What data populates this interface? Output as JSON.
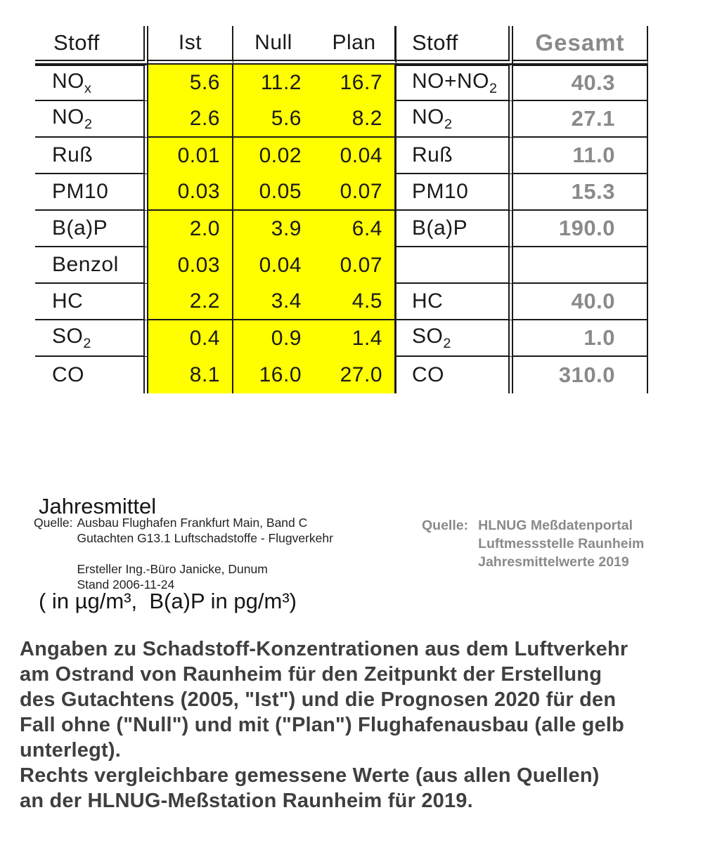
{
  "tables": {
    "left": {
      "highlight_color": "#ffff00",
      "headers": {
        "stoff": "Stoff",
        "ist": "Ist",
        "null": "Null",
        "plan": "Plan"
      },
      "rows": [
        {
          "label": "NO",
          "sub": "x",
          "ist": "5.6",
          "null": "11.2",
          "plan": "16.7",
          "group_end": false
        },
        {
          "label": "NO",
          "sub": "2",
          "ist": "2.6",
          "null": "5.6",
          "plan": "8.2",
          "group_end": true
        },
        {
          "label": "Ruß",
          "sub": "",
          "ist": "0.01",
          "null": "0.02",
          "plan": "0.04",
          "group_end": false
        },
        {
          "label": "PM10",
          "sub": "",
          "ist": "0.03",
          "null": "0.05",
          "plan": "0.07",
          "group_end": true
        },
        {
          "label": "B(a)P",
          "sub": "",
          "ist": "2.0",
          "null": "3.9",
          "plan": "6.4",
          "group_end": false
        },
        {
          "label": "Benzol",
          "sub": "",
          "ist": "0.03",
          "null": "0.04",
          "plan": "0.07",
          "group_end": false
        },
        {
          "label": "HC",
          "sub": "",
          "ist": "2.2",
          "null": "3.4",
          "plan": "4.5",
          "group_end": true
        },
        {
          "label": "SO",
          "sub": "2",
          "ist": "0.4",
          "null": "0.9",
          "plan": "1.4",
          "group_end": false
        },
        {
          "label": "CO",
          "sub": "",
          "ist": "8.1",
          "null": "16.0",
          "plan": "27.0",
          "group_end": false
        }
      ]
    },
    "right": {
      "value_color": "#8a8a8a",
      "headers": {
        "stoff": "Stoff",
        "gesamt": "Gesamt"
      },
      "rows": [
        {
          "label": "NO+NO",
          "sub": "2",
          "gesamt": "40.3"
        },
        {
          "label": "NO",
          "sub": "2",
          "gesamt": "27.1"
        },
        {
          "label": "Ruß",
          "sub": "",
          "gesamt": "11.0"
        },
        {
          "label": "PM10",
          "sub": "",
          "gesamt": "15.3"
        },
        {
          "label": "B(a)P",
          "sub": "",
          "gesamt": "190.0"
        },
        {
          "label": "",
          "sub": "",
          "gesamt": ""
        },
        {
          "label": "HC",
          "sub": "",
          "gesamt": "40.0"
        },
        {
          "label": "SO",
          "sub": "2",
          "gesamt": "1.0"
        },
        {
          "label": "CO",
          "sub": "",
          "gesamt": "310.0"
        }
      ]
    }
  },
  "units_note": {
    "line1": "Jahresmittel",
    "line2": "( in µg/m³,  B(a)P in pg/m³)"
  },
  "source_left": {
    "label": "Quelle:",
    "lines": [
      "Ausbau Flughafen Frankfurt Main, Band C",
      "Gutachten G13.1 Luftschadstoffe - Flugverkehr",
      "",
      "Ersteller Ing.-Büro Janicke, Dunum",
      "Stand 2006-11-24"
    ]
  },
  "source_right": {
    "label": "Quelle:",
    "lines": [
      "HLNUG Meßdatenportal",
      "Luftmessstelle Raunheim",
      "Jahresmittelwerte 2019"
    ]
  },
  "caption": {
    "lines": [
      "Angaben zu Schadstoff-Konzentrationen aus dem Luftverkehr",
      "am Ostrand von Raunheim für den Zeitpunkt der Erstellung",
      "des Gutachtens (2005, \"Ist\") und die Prognosen 2020 für den",
      "Fall ohne (\"Null\") und mit (\"Plan\") Flughafenausbau (alle gelb",
      "unterlegt).",
      "Rechts vergleichbare gemessene Werte (aus allen Quellen)",
      "an der HLNUG-Meßstation Raunheim für 2019."
    ]
  }
}
